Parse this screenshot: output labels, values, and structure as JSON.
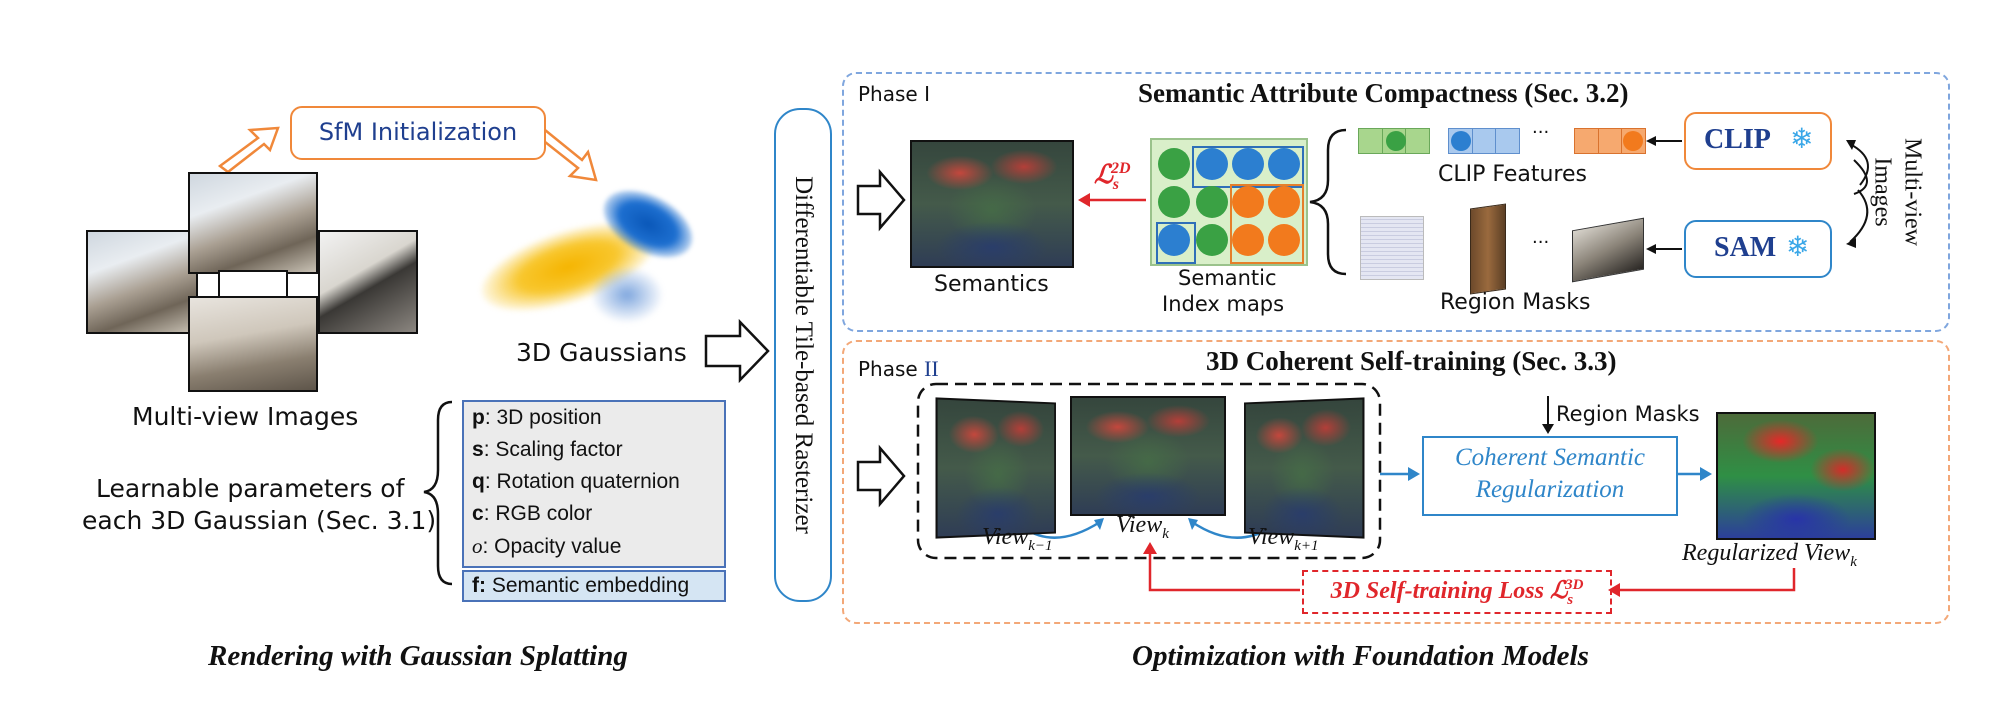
{
  "left": {
    "sfm_label": "SfM Initialization",
    "gaussians_label": "3D Gaussians",
    "multiview_label": "Multi-view Images",
    "learnable_line1": "Learnable parameters of",
    "learnable_line2": "each 3D Gaussian (Sec. 3.1)",
    "params": [
      {
        "sym": "p",
        "text": ": 3D position"
      },
      {
        "sym": "s",
        "text": ": Scaling factor"
      },
      {
        "sym": "q",
        "text": ": Rotation quaternion"
      },
      {
        "sym": "c",
        "text": ": RGB color"
      },
      {
        "sym": "o",
        "text": ": Opacity value"
      }
    ],
    "semantic_param": {
      "sym": "f:",
      "text": " Semantic embedding"
    },
    "caption": "Rendering with Gaussian Splatting"
  },
  "rasterizer_label": "Differentiable Tile-based Rasterizer",
  "phase1": {
    "tag": "Phase I",
    "title": "Semantic Attribute Compactness (Sec. 3.2)",
    "semantics_label": "Semantics",
    "loss_2d": "ℒ",
    "loss_2d_sup": "2D",
    "loss_2d_sub": "s",
    "index_label_line1": "Semantic",
    "index_label_line2": "Index maps",
    "clip_features_label": "CLIP Features",
    "region_masks_label": "Region Masks",
    "ellipsis": "···",
    "clip_model": "CLIP",
    "sam_model": "SAM",
    "side_label_line1": "Multi-view",
    "side_label_line2": "Images",
    "index_grid": [
      [
        "g",
        "b",
        "b",
        "b"
      ],
      [
        "g",
        "g",
        "o",
        "o"
      ],
      [
        "b",
        "g",
        "o",
        "o"
      ]
    ]
  },
  "phase2": {
    "tag_prefix": "Phase ",
    "tag_num": "II",
    "title": "3D Coherent Self-training (Sec. 3.3)",
    "view_prev": "View",
    "view_prev_sub": "k−1",
    "view_k": "View",
    "view_k_sub": "k",
    "view_next": "View",
    "view_next_sub": "k+1",
    "region_masks_label": "Region Masks",
    "regularization_line1": "Coherent Semantic",
    "regularization_line2": "Regularization",
    "regularized_view": "Regularized View",
    "regularized_view_sub": "k",
    "loss_3d_text": "3D Self-training Loss ℒ",
    "loss_3d_sup": "3D",
    "loss_3d_sub": "s"
  },
  "right_caption": "Optimization with Foundation Models",
  "colors": {
    "orange": "#f0883a",
    "blue": "#2f86c9",
    "red": "#e0262b"
  }
}
